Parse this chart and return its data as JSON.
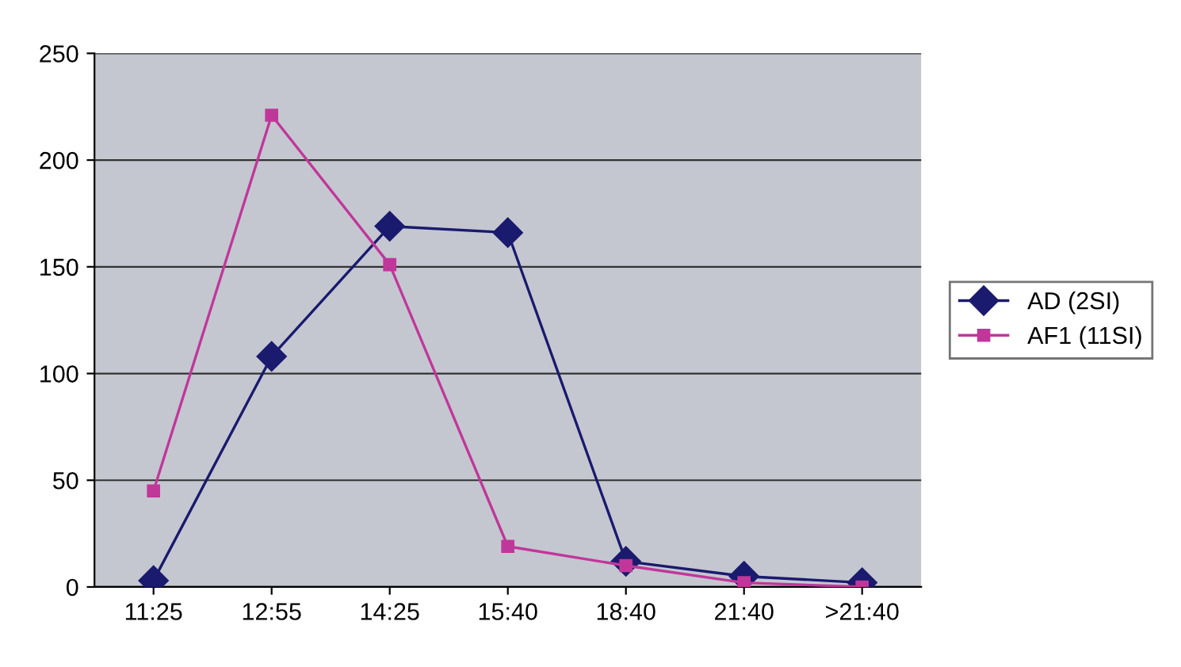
{
  "chart_data": {
    "type": "line",
    "categories": [
      "11:25",
      "12:55",
      "14:25",
      "15:40",
      "18:40",
      "21:40",
      ">21:40"
    ],
    "series": [
      {
        "name": "AD (2SI)",
        "color": "#1a1a6e",
        "marker": "diamond",
        "values": [
          3,
          108,
          169,
          166,
          12,
          5,
          2
        ]
      },
      {
        "name": "AF1 (11SI)",
        "color": "#c0379a",
        "marker": "square",
        "values": [
          45,
          221,
          151,
          19,
          10,
          2,
          0
        ]
      }
    ],
    "ylim": [
      0,
      250
    ],
    "yticks": [
      0,
      50,
      100,
      150,
      200,
      250
    ],
    "grid": "y",
    "legend": "right",
    "line_style": "solid"
  }
}
